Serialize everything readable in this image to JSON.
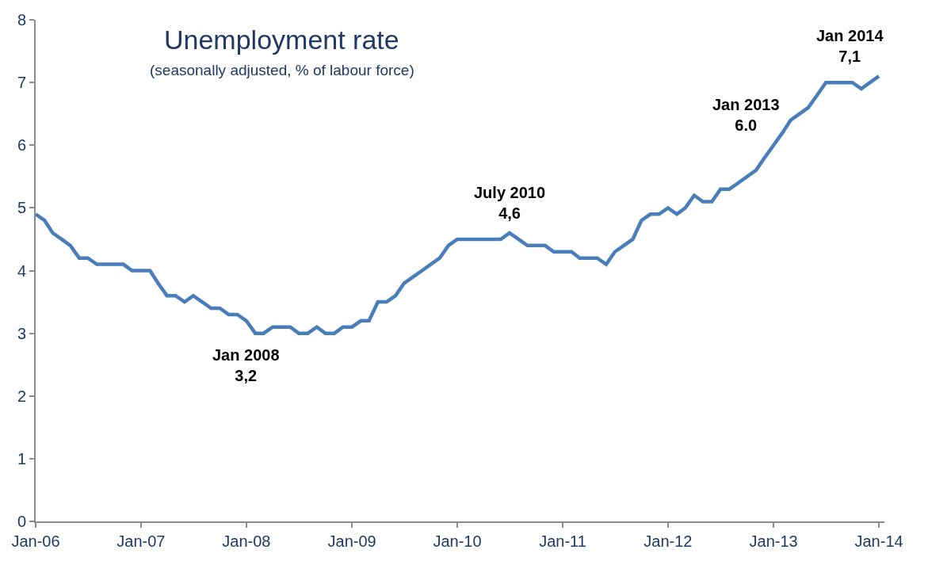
{
  "chart_data": {
    "type": "line",
    "title": "Unemployment rate",
    "subtitle": "(seasonally adjusted, % of labour force)",
    "x": [
      "2006-01",
      "2006-02",
      "2006-03",
      "2006-04",
      "2006-05",
      "2006-06",
      "2006-07",
      "2006-08",
      "2006-09",
      "2006-10",
      "2006-11",
      "2006-12",
      "2007-01",
      "2007-02",
      "2007-03",
      "2007-04",
      "2007-05",
      "2007-06",
      "2007-07",
      "2007-08",
      "2007-09",
      "2007-10",
      "2007-11",
      "2007-12",
      "2008-01",
      "2008-02",
      "2008-03",
      "2008-04",
      "2008-05",
      "2008-06",
      "2008-07",
      "2008-08",
      "2008-09",
      "2008-10",
      "2008-11",
      "2008-12",
      "2009-01",
      "2009-02",
      "2009-03",
      "2009-04",
      "2009-05",
      "2009-06",
      "2009-07",
      "2009-08",
      "2009-09",
      "2009-10",
      "2009-11",
      "2009-12",
      "2010-01",
      "2010-02",
      "2010-03",
      "2010-04",
      "2010-05",
      "2010-06",
      "2010-07",
      "2010-08",
      "2010-09",
      "2010-10",
      "2010-11",
      "2010-12",
      "2011-01",
      "2011-02",
      "2011-03",
      "2011-04",
      "2011-05",
      "2011-06",
      "2011-07",
      "2011-08",
      "2011-09",
      "2011-10",
      "2011-11",
      "2011-12",
      "2012-01",
      "2012-02",
      "2012-03",
      "2012-04",
      "2012-05",
      "2012-06",
      "2012-07",
      "2012-08",
      "2012-09",
      "2012-10",
      "2012-11",
      "2012-12",
      "2013-01",
      "2013-02",
      "2013-03",
      "2013-04",
      "2013-05",
      "2013-06",
      "2013-07",
      "2013-08",
      "2013-09",
      "2013-10",
      "2013-11",
      "2013-12",
      "2014-01"
    ],
    "series": [
      {
        "color": "#4a7ebb",
        "values": [
          4.9,
          4.8,
          4.6,
          4.5,
          4.4,
          4.2,
          4.2,
          4.1,
          4.1,
          4.1,
          4.1,
          4.0,
          4.0,
          4.0,
          3.8,
          3.6,
          3.6,
          3.5,
          3.6,
          3.5,
          3.4,
          3.4,
          3.3,
          3.3,
          3.2,
          3.0,
          3.0,
          3.1,
          3.1,
          3.1,
          3.0,
          3.0,
          3.1,
          3.0,
          3.0,
          3.1,
          3.1,
          3.2,
          3.2,
          3.5,
          3.5,
          3.6,
          3.8,
          3.9,
          4.0,
          4.1,
          4.2,
          4.4,
          4.5,
          4.5,
          4.5,
          4.5,
          4.5,
          4.5,
          4.6,
          4.5,
          4.4,
          4.4,
          4.4,
          4.3,
          4.3,
          4.3,
          4.2,
          4.2,
          4.2,
          4.1,
          4.3,
          4.4,
          4.5,
          4.8,
          4.9,
          4.9,
          5.0,
          4.9,
          5.0,
          5.2,
          5.1,
          5.1,
          5.3,
          5.3,
          5.4,
          5.5,
          5.6,
          5.8,
          6.0,
          6.2,
          6.4,
          6.5,
          6.6,
          6.8,
          7.0,
          7.0,
          7.0,
          7.0,
          6.9,
          7.0,
          7.1
        ]
      }
    ],
    "xlim": [
      "2006-01",
      "2014-01-20"
    ],
    "xticks": [
      {
        "value": "2006-01",
        "label": "Jan-06"
      },
      {
        "value": "2007-01",
        "label": "Jan-07"
      },
      {
        "value": "2008-01",
        "label": "Jan-08"
      },
      {
        "value": "2009-01",
        "label": "Jan-09"
      },
      {
        "value": "2010-01",
        "label": "Jan-10"
      },
      {
        "value": "2011-01",
        "label": "Jan-11"
      },
      {
        "value": "2012-01",
        "label": "Jan-12"
      },
      {
        "value": "2013-01",
        "label": "Jan-13"
      },
      {
        "value": "2014-01",
        "label": "Jan-14"
      }
    ],
    "ylim": [
      0,
      8
    ],
    "yticks": [
      0,
      1,
      2,
      3,
      4,
      5,
      6,
      7,
      8
    ],
    "marker": "none",
    "line_style": "solid",
    "annotations": [
      {
        "text": "Jan 2008\n3,2",
        "x": "2008-01",
        "y": 3.2
      },
      {
        "text": "July 2010\n4,6",
        "x": "2010-07",
        "y": 4.6
      },
      {
        "text": "Jan 2013\n6.0",
        "x": "2013-01",
        "y": 6.0
      },
      {
        "text": "Jan 2014\n7,1",
        "x": "2014-01",
        "y": 7.1
      }
    ]
  }
}
